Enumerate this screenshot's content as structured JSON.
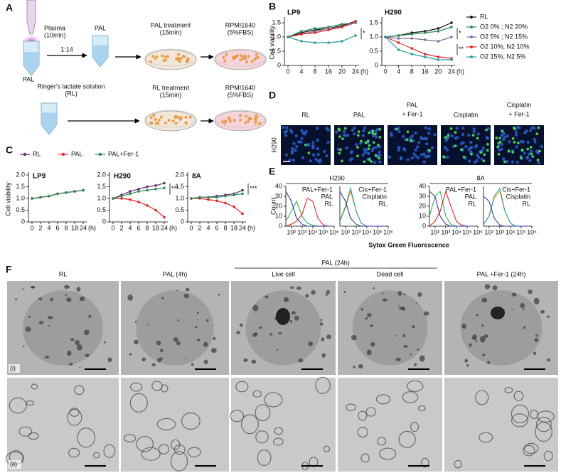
{
  "figure": {
    "panel_labels": [
      "A",
      "B",
      "C",
      "D",
      "E",
      "F"
    ]
  },
  "panel_a": {
    "plasma": [
      "Plasma",
      "(10min)"
    ],
    "pal_source": "PAL",
    "ratio": "1:14",
    "pal_tube": "PAL",
    "pal_treatment": [
      "PAL treatment",
      "(15min)"
    ],
    "rpmi_1": [
      "RPMI1640",
      "(5%FBS)"
    ],
    "rl_solution": [
      "Ringer's lactate solution",
      "(RL)"
    ],
    "rl_treatment": [
      "RL treatment",
      "(15min)"
    ],
    "rpmi_2": [
      "RPMI1640",
      "(5%FBS)"
    ]
  },
  "panel_d": {
    "row_label": "H290",
    "columns": [
      [
        "RL"
      ],
      [
        "PAL"
      ],
      [
        "PAL",
        "+ Fer-1"
      ],
      [
        "Cisplatin"
      ],
      [
        "Cisplatin",
        "+ Fer-1"
      ]
    ]
  },
  "panel_e": {
    "groups": [
      "H290",
      "8A"
    ],
    "xlabel": "Sytox Green Fluorescence",
    "ylabel": "Count"
  },
  "panel_f": {
    "columns": [
      "RL",
      "PAL (4h)",
      "Live cell",
      "Dead cell",
      "PAL +Fer-1  (24h)"
    ],
    "group": "PAL (24h)",
    "rows": [
      "(i)",
      "(ii)"
    ]
  },
  "chart_data": [
    {
      "type": "line",
      "ylabel": "Cell viability",
      "x_unit": "(h)",
      "categories": [
        "0",
        "4",
        "8",
        "16",
        "20",
        "24"
      ],
      "ylim": [
        0,
        1.6
      ],
      "yticks": [
        0,
        0.5,
        {
          "value": 1,
          "label": "1.0"
        },
        1.5
      ],
      "legend": "right",
      "facets": [
        {
          "title": "LP9",
          "annotations": [
            "*"
          ]
        },
        {
          "title": "H290",
          "annotations": [
            "*",
            "**"
          ]
        }
      ],
      "series": [
        {
          "name": "RL",
          "color": "#111111",
          "values": [
            [
              1,
              1.15,
              1.25,
              1.3,
              1.4,
              1.55
            ],
            [
              1,
              1.05,
              1.15,
              1.2,
              1.3,
              1.5
            ]
          ]
        },
        {
          "name": "O2  0% ; N2 20%",
          "color": "#2e8b57",
          "values": [
            [
              1,
              1.2,
              1.3,
              1.35,
              1.45,
              1.5
            ],
            [
              1,
              1.05,
              1.1,
              1.15,
              1.2,
              1.35
            ]
          ]
        },
        {
          "name": "O2 5% ; N2 15%",
          "color": "#7b6fa8",
          "values": [
            [
              1,
              1.1,
              1.2,
              1.3,
              1.35,
              1.5
            ],
            [
              1,
              0.95,
              0.95,
              0.9,
              0.85,
              1.0
            ]
          ]
        },
        {
          "name": "O2 10%; N2 10%",
          "color": "#e3262b",
          "values": [
            [
              1,
              1.1,
              1.15,
              1.25,
              1.35,
              1.55
            ],
            [
              1,
              0.8,
              0.6,
              0.4,
              0.3,
              0.25
            ]
          ]
        },
        {
          "name": "O2 15%; N2  5%",
          "color": "#2a9d9f",
          "values": [
            [
              1,
              0.85,
              0.8,
              0.8,
              0.85,
              1.05
            ],
            [
              1,
              0.55,
              0.4,
              0.3,
              0.2,
              0.2
            ]
          ]
        }
      ]
    },
    {
      "type": "line",
      "ylabel": "Cell viability",
      "x_unit": "(h)",
      "categories": [
        "0",
        "2",
        "4",
        "6",
        "8",
        "18",
        "24"
      ],
      "ylim": [
        0,
        2
      ],
      "yticks": [
        0,
        0.5,
        {
          "value": 1,
          "label": "1.0"
        },
        1.5,
        {
          "value": 2,
          "label": "2.0"
        }
      ],
      "legend": "top",
      "facets": [
        {
          "title": "LP9",
          "annotations": []
        },
        {
          "title": "H290",
          "annotations": [
            "***"
          ]
        },
        {
          "title": "8A",
          "annotations": [
            "***"
          ]
        }
      ],
      "series": [
        {
          "name": "RL",
          "color": "#6a2c70",
          "values": [
            [
              1,
              1.05,
              1.1,
              1.2,
              1.25,
              1.3,
              1.35
            ],
            [
              1,
              1.15,
              1.3,
              1.4,
              1.5,
              1.55,
              1.65
            ],
            [
              1,
              1.05,
              1.05,
              1.1,
              1.15,
              1.2,
              1.35
            ]
          ]
        },
        {
          "name": "PAL",
          "color": "#e3262b",
          "values": [
            [
              1,
              1.05,
              1.1,
              1.2,
              1.25,
              1.3,
              1.35
            ],
            [
              1,
              1.0,
              0.95,
              0.85,
              0.7,
              0.5,
              0.2
            ],
            [
              1,
              1.0,
              0.95,
              0.9,
              0.8,
              0.65,
              0.35
            ]
          ]
        },
        {
          "name": "PAL+Fer-1",
          "color": "#2e8b57",
          "values": [
            [
              1,
              1.05,
              1.1,
              1.2,
              1.25,
              1.3,
              1.35
            ],
            [
              1,
              1.1,
              1.2,
              1.3,
              1.35,
              1.4,
              1.45
            ],
            [
              1,
              1.05,
              1.05,
              1.05,
              1.1,
              1.15,
              1.2
            ]
          ]
        }
      ]
    },
    {
      "type": "histogram_curve",
      "xscale": "log",
      "x": [
        30,
        100,
        300,
        1000,
        3000,
        10000,
        30000,
        100000,
        300000
      ],
      "xlim": [
        30,
        1000000
      ],
      "xticks": [
        {
          "value": 100,
          "label": "10²"
        },
        {
          "value": 1000,
          "label": "10³"
        },
        {
          "value": 10000,
          "label": "10⁴"
        },
        {
          "value": 100000,
          "label": "10⁵"
        },
        {
          "value": 1000000,
          "label": "10⁶"
        }
      ],
      "ylim": [
        0,
        40
      ],
      "yticks": [
        0,
        10,
        20,
        30,
        40
      ],
      "series": [
        {
          "name": "PAL+Fer-1",
          "color": "#3cb44b",
          "values": [
            5,
            15,
            25,
            10,
            3,
            1,
            0,
            0,
            0
          ]
        },
        {
          "name": "PAL",
          "color": "#e3262b",
          "values": [
            0,
            2,
            5,
            12,
            28,
            25,
            8,
            1,
            0
          ]
        },
        {
          "name": "RL",
          "color": "#2b3aa8",
          "values": [
            35,
            25,
            8,
            2,
            0,
            0,
            0,
            0,
            0
          ]
        }
      ]
    },
    {
      "type": "histogram_curve",
      "xscale": "log",
      "x": [
        30,
        100,
        300,
        1000,
        3000,
        10000,
        30000,
        100000,
        300000
      ],
      "xlim": [
        30,
        1000000
      ],
      "xticks": [
        {
          "value": 100,
          "label": "10²"
        },
        {
          "value": 1000,
          "label": "10³"
        },
        {
          "value": 10000,
          "label": "10⁴"
        },
        {
          "value": 100000,
          "label": "10⁵"
        },
        {
          "value": 1000000,
          "label": "10⁶"
        }
      ],
      "ylim": [
        0,
        40
      ],
      "series": [
        {
          "name": "Cis+Fer-1",
          "color": "#f0a020",
          "values": [
            5,
            18,
            35,
            15,
            3,
            0,
            0,
            0,
            0
          ]
        },
        {
          "name": "Cisplatin",
          "color": "#2a9d9f",
          "values": [
            5,
            20,
            38,
            15,
            3,
            0,
            0,
            0,
            0
          ]
        },
        {
          "name": "RL",
          "color": "#2b3aa8",
          "values": [
            35,
            25,
            8,
            2,
            0,
            0,
            0,
            0,
            0
          ]
        }
      ]
    },
    {
      "type": "histogram_curve",
      "xscale": "log",
      "x": [
        30,
        100,
        300,
        1000,
        3000,
        10000,
        30000,
        100000,
        300000
      ],
      "xlim": [
        30,
        1000000
      ],
      "xticks": [
        {
          "value": 100,
          "label": "10²"
        },
        {
          "value": 1000,
          "label": "10³"
        },
        {
          "value": 10000,
          "label": "10⁴"
        },
        {
          "value": 100000,
          "label": "10⁵"
        },
        {
          "value": 1000000,
          "label": "10⁶"
        }
      ],
      "ylim": [
        0,
        40
      ],
      "yticks": [
        0,
        10,
        20,
        30,
        40
      ],
      "series": [
        {
          "name": "PAL+Fer-1",
          "color": "#3cb44b",
          "values": [
            10,
            30,
            35,
            10,
            2,
            0,
            0,
            0,
            0
          ]
        },
        {
          "name": "PAL",
          "color": "#e3262b",
          "values": [
            0,
            5,
            15,
            35,
            20,
            5,
            1,
            0,
            0
          ]
        },
        {
          "name": "RL",
          "color": "#2b3aa8",
          "values": [
            35,
            30,
            10,
            2,
            0,
            0,
            0,
            0,
            0
          ]
        }
      ]
    },
    {
      "type": "histogram_curve",
      "xscale": "log",
      "x": [
        30,
        100,
        300,
        1000,
        3000,
        10000,
        30000,
        100000,
        300000
      ],
      "xlim": [
        30,
        1000000
      ],
      "xticks": [
        {
          "value": 100,
          "label": "10²"
        },
        {
          "value": 1000,
          "label": "10³"
        },
        {
          "value": 10000,
          "label": "10⁴"
        },
        {
          "value": 100000,
          "label": "10⁵"
        },
        {
          "value": 1000000,
          "label": "10⁶"
        }
      ],
      "ylim": [
        0,
        40
      ],
      "series": [
        {
          "name": "Cis+Fer-1",
          "color": "#f0a020",
          "values": [
            2,
            10,
            28,
            35,
            15,
            3,
            0,
            0,
            0
          ]
        },
        {
          "name": "Cisplatin",
          "color": "#2a9d9f",
          "values": [
            2,
            10,
            30,
            38,
            15,
            3,
            0,
            0,
            0
          ]
        },
        {
          "name": "RL",
          "color": "#2b3aa8",
          "values": [
            30,
            25,
            8,
            1,
            0,
            0,
            0,
            0,
            0
          ]
        }
      ]
    }
  ]
}
